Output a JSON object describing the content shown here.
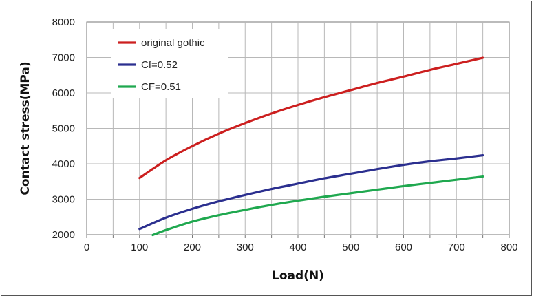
{
  "chart_data": {
    "type": "line",
    "xlabel": "Load(N)",
    "ylabel": "Contact stress(MPa)",
    "xlim": [
      0,
      800
    ],
    "ylim": [
      2000,
      8000
    ],
    "xticks": [
      0,
      100,
      200,
      300,
      400,
      500,
      600,
      700,
      800
    ],
    "yticks": [
      2000,
      3000,
      4000,
      5000,
      6000,
      7000,
      8000
    ],
    "grid": true,
    "legend_position": "top-left",
    "series": [
      {
        "name": "original gothic",
        "color": "#cc1f1f",
        "x": [
          100,
          150,
          200,
          250,
          300,
          350,
          400,
          450,
          500,
          550,
          600,
          650,
          700,
          750
        ],
        "y": [
          3600,
          4100,
          4500,
          4850,
          5150,
          5420,
          5660,
          5880,
          6080,
          6280,
          6460,
          6650,
          6820,
          6990
        ]
      },
      {
        "name": "Cf=0.52",
        "color": "#2b2f8f",
        "x": [
          100,
          150,
          200,
          250,
          300,
          350,
          400,
          450,
          500,
          550,
          600,
          650,
          700,
          750
        ],
        "y": [
          2160,
          2480,
          2730,
          2940,
          3120,
          3290,
          3440,
          3590,
          3720,
          3850,
          3970,
          4070,
          4150,
          4240
        ]
      },
      {
        "name": "CF=0.51",
        "color": "#1fa84f",
        "x": [
          125,
          150,
          200,
          250,
          300,
          350,
          400,
          450,
          500,
          550,
          600,
          650,
          700,
          750
        ],
        "y": [
          1990,
          2130,
          2370,
          2550,
          2700,
          2840,
          2960,
          3070,
          3170,
          3270,
          3370,
          3460,
          3550,
          3640
        ]
      }
    ]
  }
}
